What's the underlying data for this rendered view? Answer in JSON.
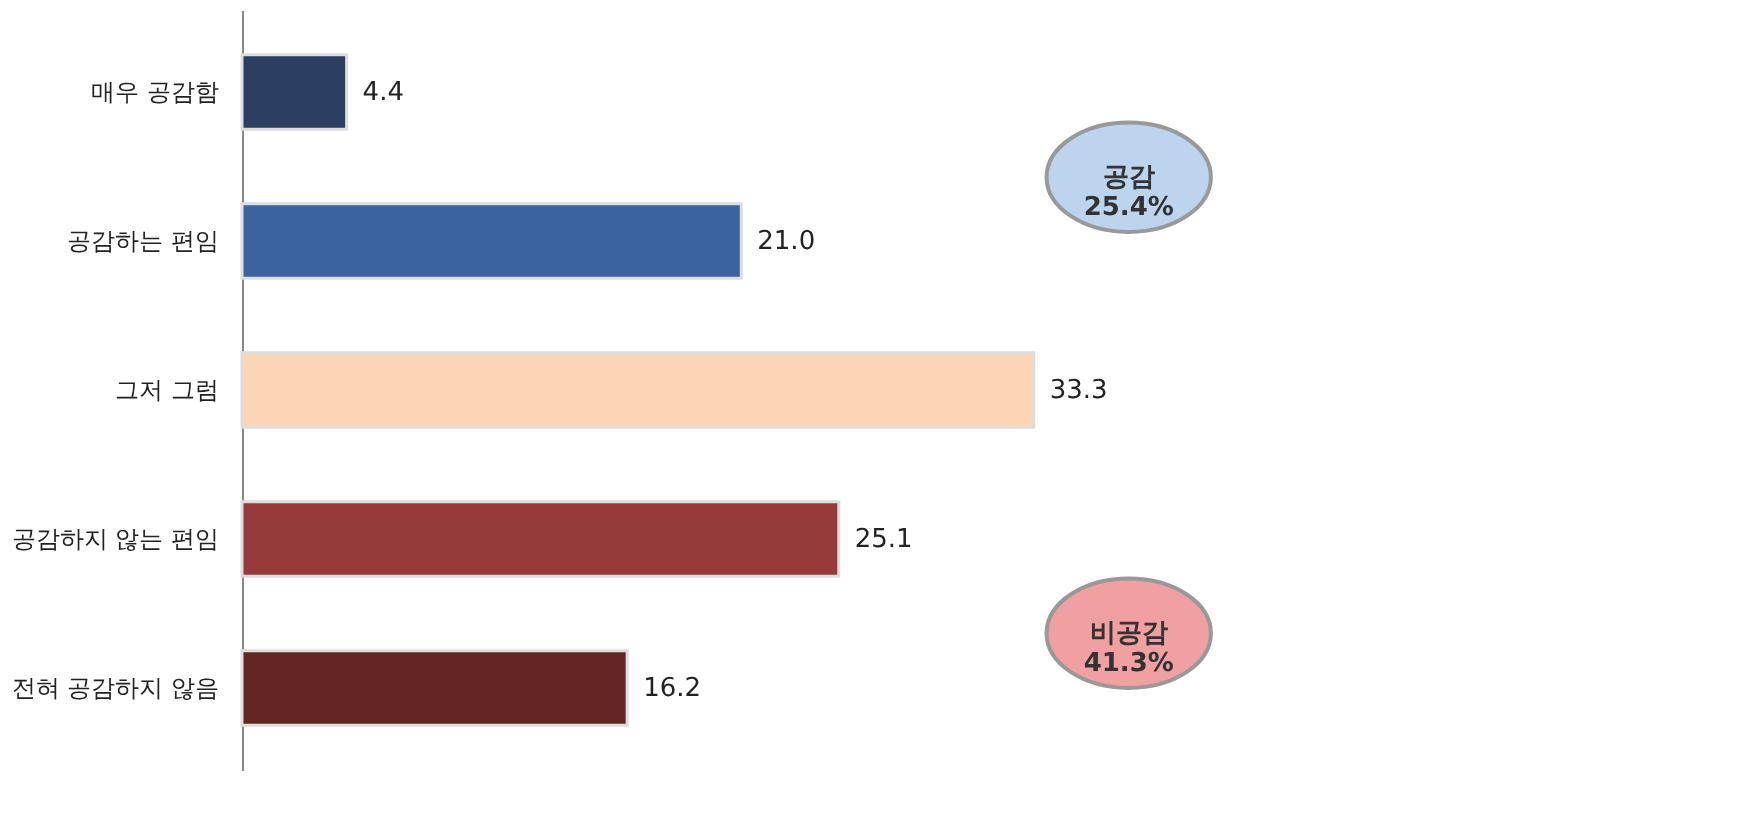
{
  "chart_data": {
    "type": "bar",
    "orientation": "horizontal",
    "categories": [
      "매우 공감함",
      "공감하는 편임",
      "그저 그럼",
      "공감하지 않는 편임",
      "전혀 공감하지 않음"
    ],
    "values": [
      4.4,
      21.0,
      33.3,
      25.1,
      16.2
    ],
    "colors": [
      "#2b3f60",
      "#3a63a0",
      "#fcd5b4",
      "#963b3a",
      "#632423"
    ],
    "value_labels": [
      "4.4",
      "21.0",
      "33.3",
      "25.1",
      "16.2"
    ],
    "annotations": [
      "공감\n25.4%",
      "비공감\n41.3%"
    ]
  }
}
